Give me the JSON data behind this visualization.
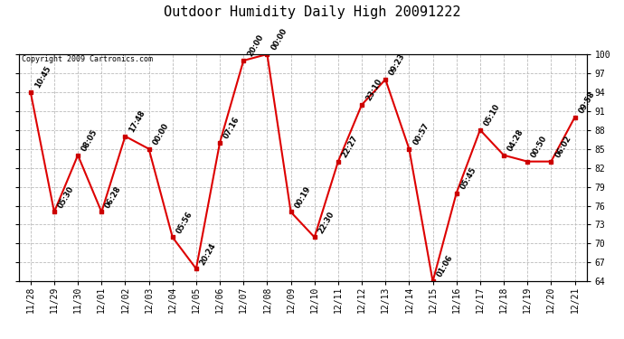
{
  "title": "Outdoor Humidity Daily High 20091222",
  "copyright": "Copyright 2009 Cartronics.com",
  "dates": [
    "11/28",
    "11/29",
    "11/30",
    "12/01",
    "12/02",
    "12/03",
    "12/04",
    "12/05",
    "12/06",
    "12/07",
    "12/08",
    "12/09",
    "12/10",
    "12/11",
    "12/12",
    "12/13",
    "12/14",
    "12/15",
    "12/16",
    "12/17",
    "12/18",
    "12/19",
    "12/20",
    "12/21"
  ],
  "values": [
    94,
    75,
    84,
    75,
    87,
    85,
    71,
    66,
    86,
    99,
    100,
    75,
    71,
    83,
    92,
    96,
    85,
    64,
    78,
    88,
    84,
    83,
    83,
    90
  ],
  "time_labels": [
    "10:45",
    "05:30",
    "08:05",
    "06:28",
    "17:48",
    "00:00",
    "05:56",
    "20:24",
    "07:16",
    "20:00",
    "00:00",
    "00:19",
    "22:30",
    "22:27",
    "23:10",
    "09:23",
    "00:57",
    "01:06",
    "05:45",
    "05:10",
    "04:28",
    "00:50",
    "06:02",
    "09:58"
  ],
  "ylim": [
    64,
    100
  ],
  "yticks": [
    64,
    67,
    70,
    73,
    76,
    79,
    82,
    85,
    88,
    91,
    94,
    97,
    100
  ],
  "line_color": "#dd0000",
  "marker_color": "#cc0000",
  "bg_color": "#ffffff",
  "grid_color": "#bbbbbb",
  "title_fontsize": 11,
  "label_fontsize": 6,
  "tick_fontsize": 7,
  "copyright_fontsize": 6
}
